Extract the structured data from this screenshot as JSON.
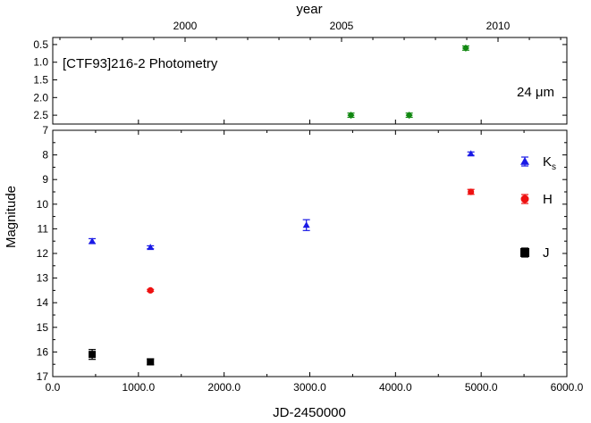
{
  "chart_data": [
    {
      "type": "scatter",
      "panel": "top",
      "title": "[CTF93]216-2 Photometry",
      "annotation": "24 μm",
      "x2label": "year",
      "x2ticks": [
        "2000",
        "2005",
        "2010"
      ],
      "x2tick_values_jd": [
        1544.5,
        3370.5,
        5196.5
      ],
      "ylim": [
        0.3,
        2.75
      ],
      "yticks": [
        "0.5",
        "1.0",
        "1.5",
        "2.0",
        "2.5"
      ],
      "xlim": [
        0,
        6000
      ],
      "series": [
        {
          "color": "#118811",
          "marker": "diamond",
          "x": [
            3480,
            4160,
            4820
          ],
          "y": [
            2.5,
            2.5,
            0.6
          ],
          "err": [
            0.06,
            0.06,
            0.06
          ]
        }
      ]
    },
    {
      "type": "scatter",
      "panel": "bottom",
      "xlabel": "JD-2450000",
      "ylabel": "Magnitude",
      "xlim": [
        0,
        6000
      ],
      "ylim": [
        17,
        7
      ],
      "xticks": [
        "0.0",
        "1000.0",
        "2000.0",
        "3000.0",
        "4000.0",
        "5000.0",
        "6000.0"
      ],
      "yticks": [
        "7",
        "8",
        "9",
        "10",
        "11",
        "12",
        "13",
        "14",
        "15",
        "16",
        "17"
      ],
      "series": [
        {
          "name": "Ks",
          "legend_main": "K",
          "legend_sub": "s",
          "color": "#1a1ae6",
          "marker": "triangle",
          "x": [
            460,
            1140,
            2960,
            4880
          ],
          "y": [
            11.5,
            11.75,
            10.85,
            7.95
          ],
          "err": [
            0.1,
            0.06,
            0.22,
            0.07
          ]
        },
        {
          "name": "H",
          "color": "#ee1111",
          "marker": "circle",
          "x": [
            1140,
            4880
          ],
          "y": [
            13.5,
            9.5
          ],
          "err": [
            0.04,
            0.1
          ]
        },
        {
          "name": "J",
          "color": "#000000",
          "marker": "square",
          "x": [
            460,
            1140
          ],
          "y": [
            16.1,
            16.4
          ],
          "err": [
            0.2,
            0.12
          ]
        }
      ]
    }
  ]
}
